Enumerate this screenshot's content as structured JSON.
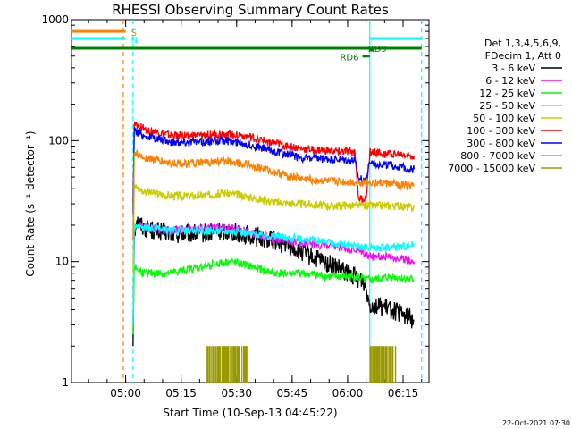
{
  "chart_data": {
    "type": "line",
    "title": "RHESSI Observing Summary Count Rates",
    "xlabel": "Start Time (10-Sep-13 04:45:22)",
    "ylabel": "Count Rate (s⁻¹ detector⁻¹)",
    "yscale": "log",
    "ylim": [
      1,
      1000
    ],
    "xlim": [
      "04:45:22",
      "06:22:00"
    ],
    "x_ticks": [
      "05:00",
      "05:15",
      "05:30",
      "05:45",
      "06:00",
      "06:15"
    ],
    "y_ticks": [
      "1",
      "10",
      "100",
      "1000"
    ],
    "legend_header": [
      "Det 1,3,4,5,6,9,",
      "FDecim 1, Att 0"
    ],
    "legend_position": "right",
    "series": [
      {
        "name": "3 - 6 keV",
        "color": "#000000",
        "points": [
          [
            "05:02",
            2
          ],
          [
            "05:02:20",
            18
          ],
          [
            "05:03",
            22
          ],
          [
            "05:05",
            19
          ],
          [
            "05:08",
            18
          ],
          [
            "05:12",
            17
          ],
          [
            "05:20",
            17
          ],
          [
            "05:28",
            18
          ],
          [
            "05:35",
            16
          ],
          [
            "05:40",
            15
          ],
          [
            "05:45",
            13
          ],
          [
            "05:50",
            11
          ],
          [
            "05:55",
            9.5
          ],
          [
            "06:00",
            8
          ],
          [
            "06:04",
            7
          ],
          [
            "06:05",
            6
          ],
          [
            "06:06",
            4.5
          ],
          [
            "06:12",
            4
          ],
          [
            "06:18",
            3.3
          ]
        ]
      },
      {
        "name": "6 - 12 keV",
        "color": "#ff00ff",
        "points": [
          [
            "05:02",
            3
          ],
          [
            "05:02:20",
            18
          ],
          [
            "05:03",
            20
          ],
          [
            "05:06",
            19
          ],
          [
            "05:12",
            18
          ],
          [
            "05:20",
            19
          ],
          [
            "05:28",
            19
          ],
          [
            "05:35",
            17
          ],
          [
            "05:42",
            15
          ],
          [
            "05:50",
            14
          ],
          [
            "05:58",
            13
          ],
          [
            "06:04",
            12
          ],
          [
            "06:06",
            11
          ],
          [
            "06:12",
            11
          ],
          [
            "06:18",
            10
          ]
        ]
      },
      {
        "name": "12 - 25 keV",
        "color": "#00ff00",
        "points": [
          [
            "05:02",
            2.5
          ],
          [
            "05:02:20",
            9
          ],
          [
            "05:05",
            8
          ],
          [
            "05:12",
            8
          ],
          [
            "05:20",
            9
          ],
          [
            "05:28",
            10
          ],
          [
            "05:32",
            9.5
          ],
          [
            "05:40",
            8
          ],
          [
            "05:48",
            8
          ],
          [
            "05:55",
            7.5
          ],
          [
            "06:02",
            7.5
          ],
          [
            "06:06",
            7
          ],
          [
            "06:12",
            7.5
          ],
          [
            "06:18",
            7
          ]
        ]
      },
      {
        "name": "25 - 50 keV",
        "color": "#00ffff",
        "points": [
          [
            "05:02",
            3
          ],
          [
            "05:02:20",
            20
          ],
          [
            "05:05",
            19
          ],
          [
            "05:12",
            18
          ],
          [
            "05:20",
            18
          ],
          [
            "05:28",
            18
          ],
          [
            "05:35",
            17
          ],
          [
            "05:42",
            16
          ],
          [
            "05:50",
            15
          ],
          [
            "05:58",
            14
          ],
          [
            "06:04",
            13
          ],
          [
            "06:06",
            13
          ],
          [
            "06:12",
            13
          ],
          [
            "06:18",
            14
          ]
        ]
      },
      {
        "name": "50 - 100 keV",
        "color": "#cccc00",
        "points": [
          [
            "05:02",
            8
          ],
          [
            "05:02:20",
            42
          ],
          [
            "05:05",
            38
          ],
          [
            "05:12",
            35
          ],
          [
            "05:20",
            35
          ],
          [
            "05:27",
            37
          ],
          [
            "05:32",
            35
          ],
          [
            "05:40",
            31
          ],
          [
            "05:48",
            30
          ],
          [
            "05:55",
            29
          ],
          [
            "06:02",
            29
          ],
          [
            "06:06",
            29
          ],
          [
            "06:12",
            29
          ],
          [
            "06:18",
            28
          ]
        ]
      },
      {
        "name": "100 - 300 keV",
        "color": "#ff0000",
        "points": [
          [
            "05:02",
            30
          ],
          [
            "05:02:20",
            135
          ],
          [
            "05:05",
            125
          ],
          [
            "05:12",
            110
          ],
          [
            "05:20",
            110
          ],
          [
            "05:27",
            115
          ],
          [
            "05:32",
            110
          ],
          [
            "05:40",
            95
          ],
          [
            "05:48",
            85
          ],
          [
            "05:55",
            82
          ],
          [
            "06:02",
            80
          ],
          [
            "06:03",
            33
          ],
          [
            "06:05",
            33
          ],
          [
            "06:06",
            80
          ],
          [
            "06:12",
            78
          ],
          [
            "06:18",
            75
          ]
        ]
      },
      {
        "name": "300 - 800 keV",
        "color": "#0000ff",
        "points": [
          [
            "05:02",
            25
          ],
          [
            "05:02:20",
            120
          ],
          [
            "05:05",
            110
          ],
          [
            "05:12",
            98
          ],
          [
            "05:20",
            98
          ],
          [
            "05:27",
            100
          ],
          [
            "05:32",
            95
          ],
          [
            "05:40",
            82
          ],
          [
            "05:48",
            72
          ],
          [
            "05:55",
            70
          ],
          [
            "06:02",
            68
          ],
          [
            "06:03",
            48
          ],
          [
            "06:05",
            48
          ],
          [
            "06:06",
            66
          ],
          [
            "06:12",
            62
          ],
          [
            "06:18",
            58
          ]
        ]
      },
      {
        "name": "800 - 7000 keV",
        "color": "#ff8000",
        "points": [
          [
            "05:02",
            15
          ],
          [
            "05:02:20",
            80
          ],
          [
            "05:05",
            72
          ],
          [
            "05:12",
            65
          ],
          [
            "05:20",
            65
          ],
          [
            "05:27",
            68
          ],
          [
            "05:32",
            65
          ],
          [
            "05:40",
            55
          ],
          [
            "05:48",
            48
          ],
          [
            "05:55",
            46
          ],
          [
            "06:02",
            45
          ],
          [
            "06:06",
            45
          ],
          [
            "06:12",
            44
          ],
          [
            "06:18",
            42
          ]
        ]
      },
      {
        "name": "7000 - 15000 keV",
        "color": "#999900",
        "points": []
      }
    ],
    "sporadic_spikes_7000_15000": {
      "color": "#999900",
      "intervals": [
        [
          "05:22",
          "05:33"
        ],
        [
          "06:06",
          "06:13"
        ]
      ],
      "y_range": [
        1,
        2
      ]
    },
    "flags": [
      {
        "label": "S",
        "color": "#ff8000",
        "y": 800,
        "x_start": "04:45:22",
        "x_end": "05:00"
      },
      {
        "label": "N",
        "color": "#00ffff",
        "y": 700,
        "x_start": "04:45:22",
        "x_end": "05:00"
      },
      {
        "label": "",
        "color": "#00ffff",
        "y": 700,
        "x_start": "06:06",
        "x_end": "06:20"
      },
      {
        "label": "",
        "color": "#008000",
        "y": 580,
        "x_start": "04:45:22",
        "x_end": "06:20"
      },
      {
        "label": "RD6",
        "color": "#008000",
        "y": 500,
        "x_start": "06:04",
        "x_end": "06:06"
      },
      {
        "label": "RD9",
        "color": "#008000",
        "y": 560,
        "x_start": "06:06",
        "x_end": "06:07"
      }
    ],
    "vlines": [
      {
        "x": "04:59:22",
        "color": "#ff8000",
        "style": "dashed"
      },
      {
        "x": "05:02:00",
        "color": "#00ffff",
        "style": "dashed"
      },
      {
        "x": "06:06:00",
        "color": "#00ffff",
        "style": "solid"
      },
      {
        "x": "06:20:00",
        "color": "#00ffff",
        "style": "dashed"
      }
    ]
  },
  "footer": {
    "date": "22-Oct-2021 07:30"
  }
}
